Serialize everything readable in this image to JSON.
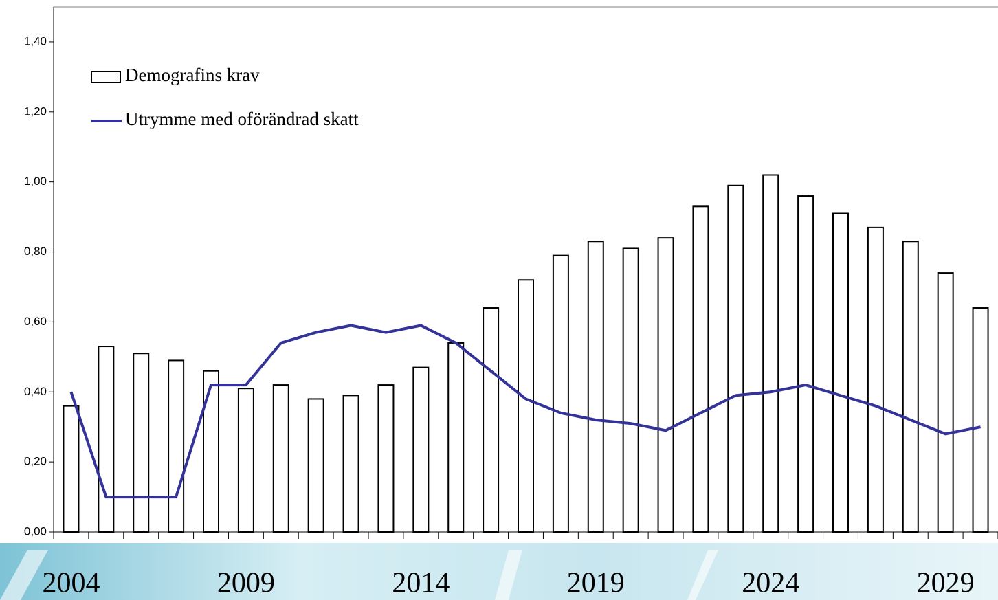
{
  "chart_data": {
    "type": "bar-line",
    "categories": [
      "2004",
      null,
      null,
      null,
      null,
      "2009",
      null,
      null,
      null,
      null,
      "2014",
      null,
      null,
      null,
      null,
      "2019",
      null,
      null,
      null,
      null,
      "2024",
      null,
      null,
      null,
      null,
      "2029",
      null
    ],
    "series": [
      {
        "name": "Demografins krav",
        "type": "bar",
        "color": "#ffffff",
        "values": [
          0.36,
          0.53,
          0.51,
          0.49,
          0.46,
          0.41,
          0.42,
          0.38,
          0.39,
          0.42,
          0.47,
          0.54,
          0.64,
          0.72,
          0.79,
          0.83,
          0.81,
          0.84,
          0.93,
          0.99,
          1.02,
          0.96,
          0.91,
          0.87,
          0.83,
          0.74,
          0.64
        ]
      },
      {
        "name": "Utrymme med oförändrad skatt",
        "type": "line",
        "color": "#333399",
        "values": [
          0.4,
          0.1,
          0.1,
          0.1,
          0.42,
          0.42,
          0.54,
          0.57,
          0.59,
          0.57,
          0.59,
          0.54,
          0.46,
          0.38,
          0.34,
          0.32,
          0.31,
          0.29,
          0.34,
          0.39,
          0.4,
          0.42,
          0.39,
          0.36,
          0.32,
          0.28,
          0.3
        ]
      }
    ],
    "ylim": [
      0,
      1.5
    ],
    "yticks": [
      {
        "value": 0,
        "label": "0,00"
      },
      {
        "value": 0.2,
        "label": "0,20"
      },
      {
        "value": 0.4,
        "label": "0,40"
      },
      {
        "value": 0.6,
        "label": "0,60"
      },
      {
        "value": 0.8,
        "label": "0,80"
      },
      {
        "value": 1.0,
        "label": "1,00"
      },
      {
        "value": 1.2,
        "label": "1,20"
      },
      {
        "value": 1.4,
        "label": "1,40"
      }
    ],
    "legend": "top-left"
  }
}
